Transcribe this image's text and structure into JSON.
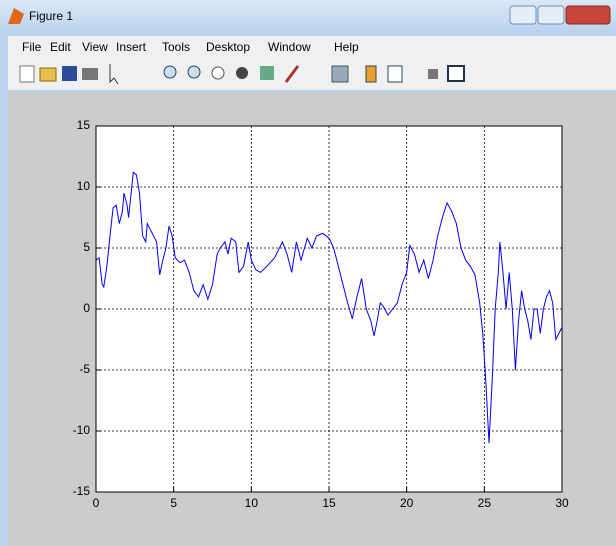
{
  "window": {
    "title": "Figure 1"
  },
  "menu": [
    "File",
    "Edit",
    "View",
    "Insert",
    "Tools",
    "Desktop",
    "Window",
    "Help"
  ],
  "chart_data": {
    "type": "line",
    "x": [
      0,
      0.2,
      0.4,
      0.5,
      0.7,
      0.9,
      1.1,
      1.3,
      1.5,
      1.7,
      1.8,
      2.0,
      2.1,
      2.3,
      2.4,
      2.6,
      2.8,
      3.0,
      3.2,
      3.3,
      3.5,
      3.7,
      3.9,
      4.1,
      4.3,
      4.5,
      4.7,
      4.9,
      5.1,
      5.4,
      5.7,
      6.0,
      6.3,
      6.6,
      6.9,
      7.2,
      7.5,
      7.8,
      8.0,
      8.3,
      8.5,
      8.7,
      9.0,
      9.2,
      9.5,
      9.8,
      10.0,
      10.3,
      10.6,
      11.0,
      11.5,
      12.0,
      12.3,
      12.6,
      12.9,
      13.2,
      13.6,
      13.9,
      14.2,
      14.6,
      15.0,
      15.3,
      15.6,
      15.9,
      16.2,
      16.5,
      16.8,
      17.1,
      17.4,
      17.7,
      17.9,
      18.1,
      18.3,
      18.5,
      18.8,
      19.1,
      19.4,
      19.7,
      20.0,
      20.2,
      20.5,
      20.8,
      21.1,
      21.4,
      21.7,
      22.0,
      22.3,
      22.6,
      22.9,
      23.2,
      23.5,
      23.8,
      24.1,
      24.4,
      24.7,
      24.9,
      25.1,
      25.3,
      25.5,
      25.7,
      25.9,
      26.0,
      26.2,
      26.4,
      26.6,
      26.8,
      27.0,
      27.2,
      27.4,
      27.6,
      27.8,
      28.0,
      28.2,
      28.4,
      28.6,
      28.8,
      29.0,
      29.2,
      29.4,
      29.6,
      29.8,
      30.0
    ],
    "values": [
      4,
      4.2,
      2,
      1.8,
      3.5,
      6,
      8.3,
      8.5,
      7,
      8,
      9.5,
      8.5,
      7.5,
      10,
      11.2,
      11,
      9.5,
      6,
      5.5,
      7,
      6.5,
      6,
      5.5,
      2.8,
      4,
      5,
      6.8,
      6,
      4.2,
      3.8,
      4,
      3,
      1.5,
      1,
      2,
      0.8,
      2,
      4.5,
      5,
      5.5,
      4.5,
      5.8,
      5.5,
      3,
      3.5,
      5.5,
      4,
      3.2,
      3,
      3.5,
      4.2,
      5.5,
      4.5,
      3,
      5.5,
      4,
      5.8,
      5,
      6,
      6.2,
      5.8,
      5,
      3.5,
      2,
      0.5,
      -0.8,
      1,
      2.5,
      0,
      -1,
      -2.2,
      -1,
      0.5,
      0.2,
      -0.5,
      0,
      0.5,
      2,
      3,
      5.2,
      4.5,
      3,
      4,
      2.5,
      4,
      6,
      7.5,
      8.7,
      8,
      7,
      5,
      4,
      3.5,
      2.8,
      0.5,
      -2,
      -6,
      -11,
      -6,
      0,
      3,
      5.5,
      3,
      0,
      3,
      0,
      -5,
      -1,
      1.5,
      0,
      -1,
      -2.5,
      0,
      0,
      -2,
      0,
      1,
      1.5,
      0.5,
      -2.5,
      -2,
      -1.5
    ],
    "color": "#0000ff",
    "xlim": [
      0,
      30
    ],
    "xticks": [
      0,
      5,
      10,
      15,
      20,
      25,
      30
    ],
    "ylim": [
      -15,
      15
    ],
    "yticks": [
      -15,
      -10,
      -5,
      0,
      5,
      10,
      15
    ],
    "grid": true
  }
}
